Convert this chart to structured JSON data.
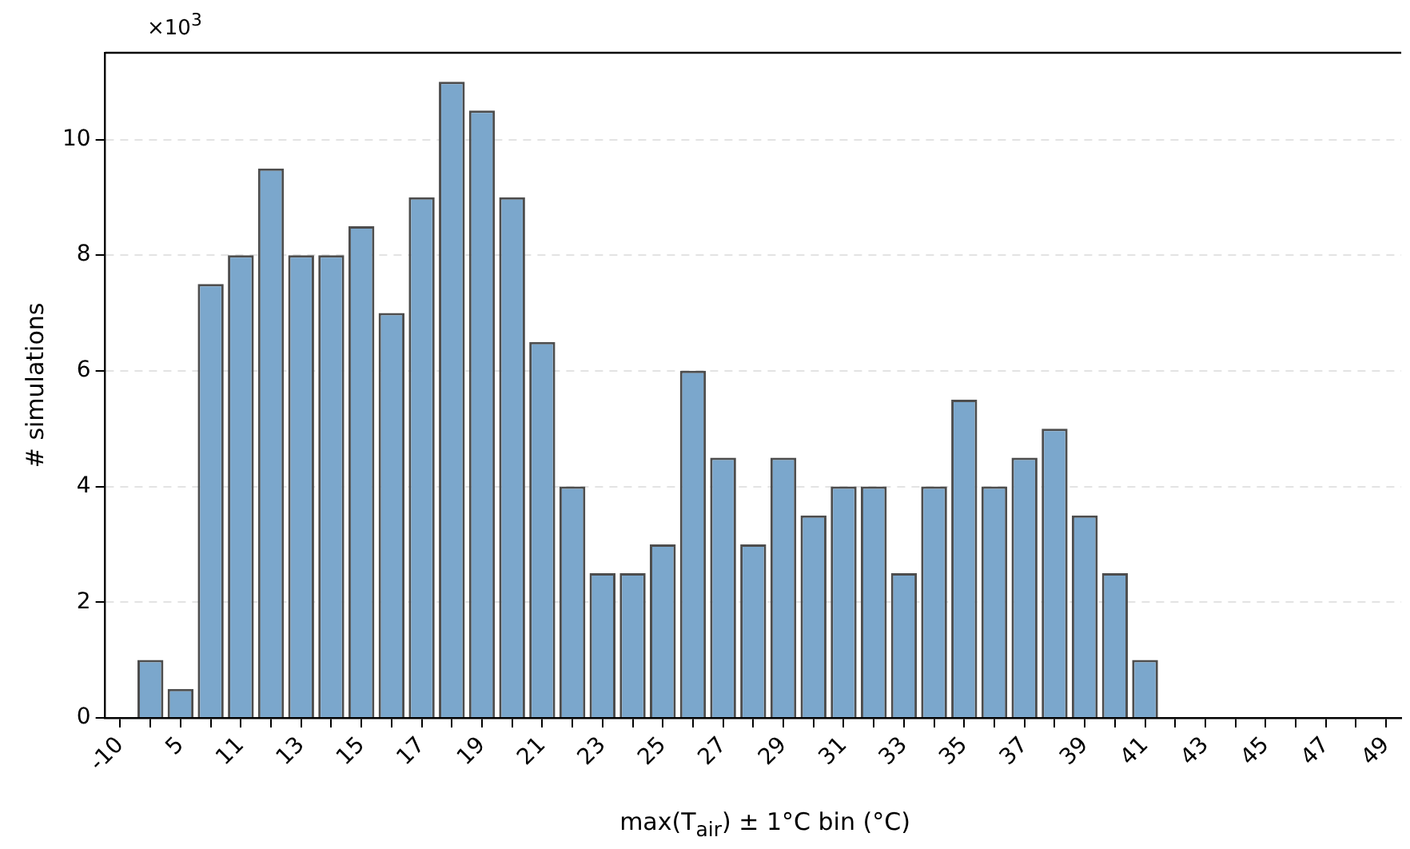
{
  "chart_data": {
    "type": "bar",
    "xlabel": "max(T$_{air}$) ± 1°C bin (°C)",
    "ylabel": "# simulations",
    "annotations": [
      "×10$^{3}$"
    ],
    "categories": [
      "-10",
      null,
      "5",
      null,
      "11",
      null,
      "13",
      null,
      "15",
      null,
      "17",
      null,
      "19",
      null,
      "21",
      null,
      "23",
      null,
      "25",
      null,
      "27",
      null,
      "29",
      null,
      "31",
      null,
      "33",
      null,
      "35",
      null,
      "37",
      null,
      "39",
      null,
      "41",
      null,
      "43",
      null,
      "45",
      null,
      "47",
      null,
      "49"
    ],
    "values": [
      0,
      1,
      0.5,
      7.5,
      8,
      9.5,
      8,
      8,
      8.5,
      7,
      9,
      11,
      10.5,
      9,
      6.5,
      4,
      2.5,
      2.5,
      3,
      6,
      4.5,
      3,
      4.5,
      3.5,
      4,
      4,
      2.5,
      4,
      5.5,
      4,
      4.5,
      5,
      3.5,
      2.5,
      1,
      0,
      0,
      0,
      0,
      0,
      0,
      0,
      0
    ],
    "color": "#7ba7cc",
    "ylim": [
      0,
      11.5
    ],
    "yticks": [
      0,
      2,
      4,
      6,
      8,
      10
    ],
    "grid": "y",
    "legend": false
  }
}
